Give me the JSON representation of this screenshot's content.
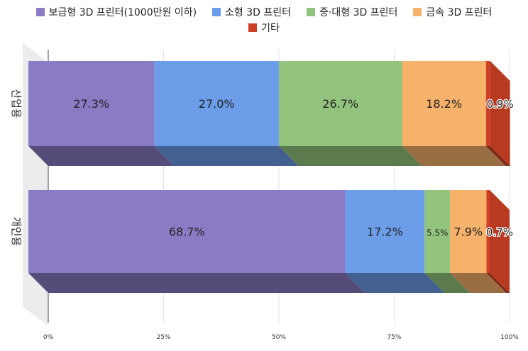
{
  "chart_data": {
    "type": "bar",
    "orientation": "horizontal",
    "stacked": true,
    "percent_stacked": true,
    "three_d": true,
    "title": "",
    "xlabel": "",
    "ylabel": "",
    "xlim": [
      0,
      100
    ],
    "x_ticks": [
      "0%",
      "25%",
      "50%",
      "75%",
      "100%"
    ],
    "grid": true,
    "legend_position": "top",
    "categories": [
      "산업용",
      "개인용"
    ],
    "series": [
      {
        "name": "보급형 3D 프린터(1000만원 이하)",
        "color": "#8b7bc4",
        "values": [
          27.3,
          68.7
        ],
        "labels": [
          "27.3%",
          "68.7%"
        ]
      },
      {
        "name": "소형 3D 프린터",
        "color": "#6b9de8",
        "values": [
          27.0,
          17.2
        ],
        "labels": [
          "27.0%",
          "17.2%"
        ]
      },
      {
        "name": "중·대형 3D 프린터",
        "color": "#93c47d",
        "values": [
          26.7,
          5.5
        ],
        "labels": [
          "26.7%",
          "5.5%"
        ]
      },
      {
        "name": "금속 3D 프린터",
        "color": "#f6b26b",
        "values": [
          18.2,
          7.9
        ],
        "labels": [
          "18.2%",
          "7.9%"
        ]
      },
      {
        "name": "기타",
        "color": "#cc4125",
        "values": [
          0.9,
          0.7
        ],
        "labels": [
          "0.9%",
          "0.7%"
        ]
      }
    ]
  }
}
